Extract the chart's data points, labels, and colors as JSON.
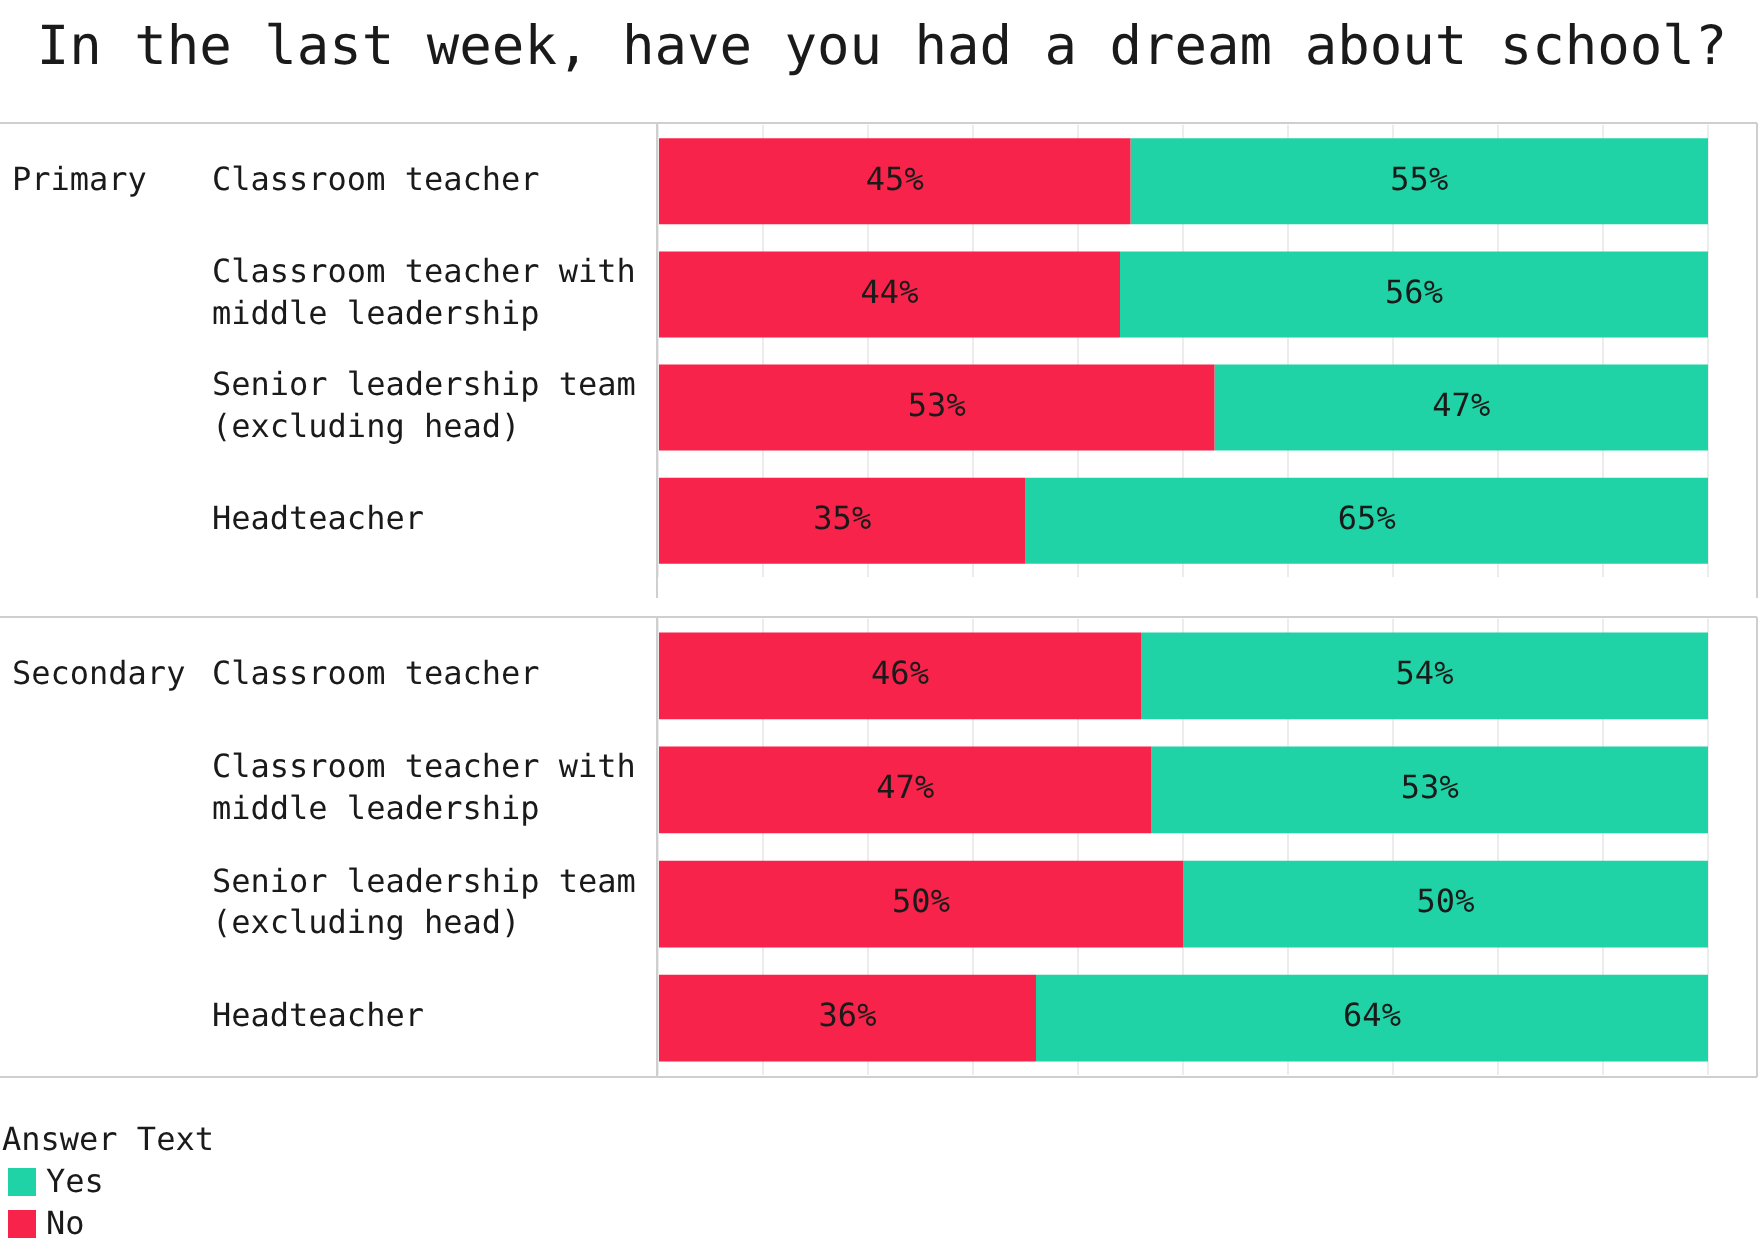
{
  "chart_data": [
    {
      "type": "bar",
      "orientation": "horizontal",
      "stacked": true,
      "title": "In the last week, have you had a dream about school?",
      "ylabel": "Primary",
      "categories": [
        "Classroom teacher",
        "Classroom teacher with middle leadership",
        "Senior leadership team (excluding head)",
        "Headteacher"
      ],
      "series": [
        {
          "color": "#f7234a",
          "values": [
            45,
            44,
            53,
            35
          ],
          "value_labels": [
            "45%",
            "44%",
            "53%",
            "35%"
          ]
        },
        {
          "color": "#1fd3a6",
          "values": [
            55,
            56,
            47,
            65
          ],
          "value_labels": [
            "55%",
            "56%",
            "47%",
            "65%"
          ]
        }
      ],
      "xlim": [
        0,
        100
      ],
      "xticks": [
        {
          "value": 0,
          "label": null
        },
        {
          "value": 10,
          "label": null
        },
        {
          "value": 20,
          "label": null
        },
        {
          "value": 30,
          "label": null
        },
        {
          "value": 40,
          "label": null
        },
        {
          "value": 50,
          "label": null
        },
        {
          "value": 60,
          "label": null
        },
        {
          "value": 70,
          "label": null
        },
        {
          "value": 80,
          "label": null
        },
        {
          "value": 90,
          "label": null
        },
        {
          "value": 100,
          "label": null
        }
      ],
      "grid": "x",
      "tick_labels": "y"
    },
    {
      "type": "bar",
      "orientation": "horizontal",
      "stacked": true,
      "ylabel": "Secondary",
      "categories": [
        "Classroom teacher",
        "Classroom teacher with middle leadership",
        "Senior leadership team (excluding head)",
        "Headteacher"
      ],
      "series": [
        {
          "name": "No",
          "color": "#f7234a",
          "values": [
            46,
            47,
            50,
            36
          ],
          "value_labels": [
            "46%",
            "47%",
            "50%",
            "36%"
          ]
        },
        {
          "name": "Yes",
          "color": "#1fd3a6",
          "values": [
            54,
            53,
            50,
            64
          ],
          "value_labels": [
            "54%",
            "53%",
            "50%",
            "64%"
          ]
        }
      ],
      "xlim": [
        0,
        100
      ],
      "xticks": [
        {
          "value": 0,
          "label": null
        },
        {
          "value": 10,
          "label": null
        },
        {
          "value": 20,
          "label": null
        },
        {
          "value": 30,
          "label": null
        },
        {
          "value": 40,
          "label": null
        },
        {
          "value": 50,
          "label": null
        },
        {
          "value": 60,
          "label": null
        },
        {
          "value": 70,
          "label": null
        },
        {
          "value": 80,
          "label": null
        },
        {
          "value": 90,
          "label": null
        },
        {
          "value": 100,
          "label": null
        }
      ],
      "grid": "x",
      "tick_labels": "y",
      "legend": "bottom left",
      "legend_title": "Answer Text"
    }
  ]
}
